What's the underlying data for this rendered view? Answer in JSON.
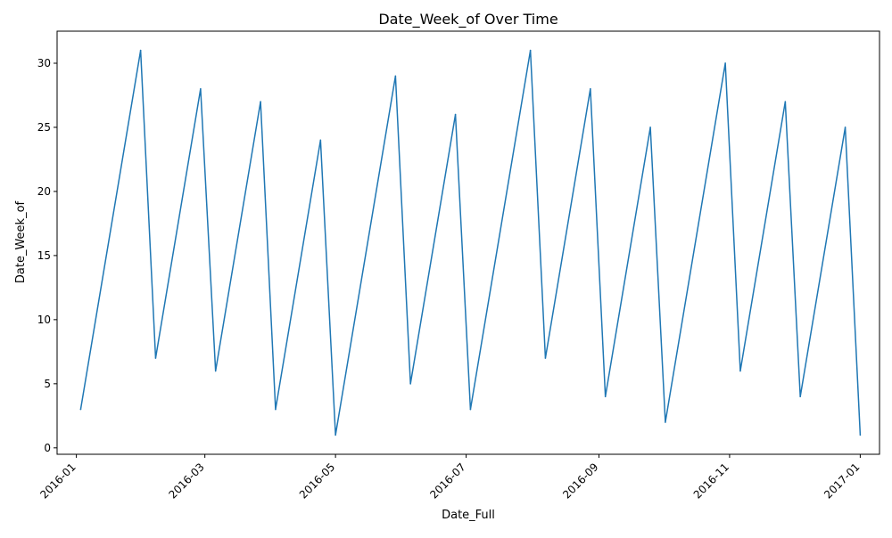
{
  "chart_data": {
    "type": "line",
    "title": "Date_Week_of Over Time",
    "xlabel": "Date_Full",
    "ylabel": "Date_Week_of",
    "xlim": [
      "2015-12-23",
      "2017-01-10"
    ],
    "ylim": [
      -0.5,
      32.5
    ],
    "x_ticks": [
      "2016-01",
      "2016-03",
      "2016-05",
      "2016-07",
      "2016-09",
      "2016-11",
      "2017-01"
    ],
    "y_ticks": [
      0,
      5,
      10,
      15,
      20,
      25,
      30
    ],
    "grid": false,
    "color": "#1f77b4",
    "series": [
      {
        "x": [
          "2016-01-03",
          "2016-01-31",
          "2016-02-07",
          "2016-02-28",
          "2016-03-06",
          "2016-03-27",
          "2016-04-03",
          "2016-04-24",
          "2016-05-01",
          "2016-05-29",
          "2016-06-05",
          "2016-06-26",
          "2016-07-03",
          "2016-07-31",
          "2016-08-07",
          "2016-08-28",
          "2016-09-04",
          "2016-09-25",
          "2016-10-02",
          "2016-10-30",
          "2016-11-06",
          "2016-11-27",
          "2016-12-04",
          "2016-12-25",
          "2017-01-01"
        ],
        "values": [
          3,
          31,
          7,
          28,
          6,
          27,
          3,
          24,
          1,
          29,
          5,
          26,
          3,
          31,
          7,
          28,
          4,
          25,
          2,
          30,
          6,
          27,
          4,
          25,
          1
        ]
      }
    ]
  }
}
